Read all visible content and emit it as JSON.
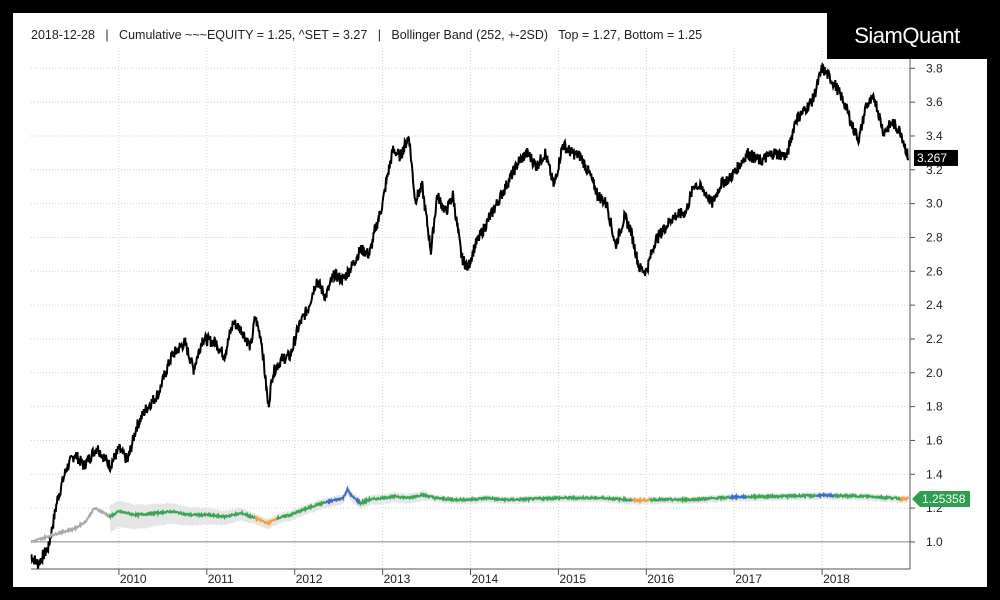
{
  "header": {
    "date": "2018-12-28",
    "sep": "|",
    "series_label": "Cumulative ~~~EQUITY = 1.25, ^SET = 3.27",
    "indicator_label": "Bollinger Band (252, +-2SD)",
    "band_label": "Top = 1.27, Bottom = 1.25"
  },
  "logo": {
    "text": "SiamQuant"
  },
  "colors": {
    "background": "#ffffff",
    "frame": "#000000",
    "set_line": "#000000",
    "equity_green": "#3aa655",
    "equity_orange": "#f5a040",
    "equity_blue": "#3a6fc4",
    "equity_gray": "#aaaaaa",
    "band_fill": "#e6e6e6",
    "last_value_black": "#000000",
    "last_value_green": "#2e9e4f"
  },
  "chart_data": {
    "type": "line",
    "title": "",
    "xlabel": "",
    "ylabel": "",
    "ylim": [
      0.84,
      3.92
    ],
    "xlim": [
      2009.0,
      2019.0
    ],
    "x_ticks": [
      "2010",
      "2011",
      "2012",
      "2013",
      "2014",
      "2015",
      "2016",
      "2017",
      "2018"
    ],
    "y_ticks": [
      "1.0",
      "1.2",
      "1.4",
      "1.6",
      "1.8",
      "2.0",
      "2.2",
      "2.4",
      "2.6",
      "2.8",
      "3.0",
      "3.2",
      "3.4",
      "3.6",
      "3.8"
    ],
    "grid": true,
    "last_values": {
      "set": "3.267",
      "equity": "1.25358"
    },
    "series": [
      {
        "name": "^SET",
        "points": [
          [
            2009.0,
            0.92
          ],
          [
            2009.08,
            0.87
          ],
          [
            2009.2,
            0.97
          ],
          [
            2009.3,
            1.25
          ],
          [
            2009.4,
            1.43
          ],
          [
            2009.5,
            1.52
          ],
          [
            2009.6,
            1.45
          ],
          [
            2009.75,
            1.56
          ],
          [
            2009.9,
            1.45
          ],
          [
            2010.0,
            1.55
          ],
          [
            2010.1,
            1.48
          ],
          [
            2010.2,
            1.68
          ],
          [
            2010.3,
            1.78
          ],
          [
            2010.45,
            1.88
          ],
          [
            2010.6,
            2.1
          ],
          [
            2010.75,
            2.18
          ],
          [
            2010.85,
            2.02
          ],
          [
            2010.95,
            2.2
          ],
          [
            2011.1,
            2.18
          ],
          [
            2011.2,
            2.1
          ],
          [
            2011.3,
            2.3
          ],
          [
            2011.4,
            2.25
          ],
          [
            2011.5,
            2.15
          ],
          [
            2011.55,
            2.33
          ],
          [
            2011.62,
            2.2
          ],
          [
            2011.7,
            1.8
          ],
          [
            2011.75,
            2.0
          ],
          [
            2011.85,
            2.08
          ],
          [
            2011.95,
            2.1
          ],
          [
            2012.05,
            2.28
          ],
          [
            2012.15,
            2.38
          ],
          [
            2012.25,
            2.55
          ],
          [
            2012.35,
            2.45
          ],
          [
            2012.45,
            2.58
          ],
          [
            2012.55,
            2.55
          ],
          [
            2012.65,
            2.63
          ],
          [
            2012.75,
            2.73
          ],
          [
            2012.85,
            2.7
          ],
          [
            2012.92,
            2.85
          ],
          [
            2013.0,
            3.0
          ],
          [
            2013.05,
            3.15
          ],
          [
            2013.12,
            3.32
          ],
          [
            2013.2,
            3.28
          ],
          [
            2013.3,
            3.4
          ],
          [
            2013.37,
            3.02
          ],
          [
            2013.45,
            3.1
          ],
          [
            2013.55,
            2.72
          ],
          [
            2013.62,
            3.05
          ],
          [
            2013.72,
            2.95
          ],
          [
            2013.8,
            3.05
          ],
          [
            2013.9,
            2.68
          ],
          [
            2013.97,
            2.62
          ],
          [
            2014.05,
            2.75
          ],
          [
            2014.15,
            2.85
          ],
          [
            2014.25,
            2.95
          ],
          [
            2014.4,
            3.1
          ],
          [
            2014.55,
            3.25
          ],
          [
            2014.65,
            3.3
          ],
          [
            2014.75,
            3.22
          ],
          [
            2014.85,
            3.3
          ],
          [
            2014.95,
            3.1
          ],
          [
            2015.05,
            3.35
          ],
          [
            2015.15,
            3.3
          ],
          [
            2015.25,
            3.28
          ],
          [
            2015.35,
            3.18
          ],
          [
            2015.45,
            3.05
          ],
          [
            2015.55,
            3.0
          ],
          [
            2015.65,
            2.75
          ],
          [
            2015.75,
            2.92
          ],
          [
            2015.82,
            2.85
          ],
          [
            2015.92,
            2.62
          ],
          [
            2016.0,
            2.6
          ],
          [
            2016.1,
            2.78
          ],
          [
            2016.2,
            2.85
          ],
          [
            2016.3,
            2.92
          ],
          [
            2016.45,
            2.95
          ],
          [
            2016.55,
            3.12
          ],
          [
            2016.65,
            3.08
          ],
          [
            2016.75,
            3.0
          ],
          [
            2016.85,
            3.12
          ],
          [
            2016.95,
            3.15
          ],
          [
            2017.05,
            3.22
          ],
          [
            2017.15,
            3.3
          ],
          [
            2017.3,
            3.25
          ],
          [
            2017.45,
            3.3
          ],
          [
            2017.6,
            3.28
          ],
          [
            2017.7,
            3.5
          ],
          [
            2017.8,
            3.55
          ],
          [
            2017.9,
            3.62
          ],
          [
            2018.0,
            3.8
          ],
          [
            2018.08,
            3.75
          ],
          [
            2018.15,
            3.7
          ],
          [
            2018.25,
            3.6
          ],
          [
            2018.35,
            3.45
          ],
          [
            2018.42,
            3.38
          ],
          [
            2018.5,
            3.58
          ],
          [
            2018.6,
            3.62
          ],
          [
            2018.7,
            3.42
          ],
          [
            2018.8,
            3.48
          ],
          [
            2018.9,
            3.42
          ],
          [
            2018.98,
            3.27
          ]
        ]
      },
      {
        "name": "EQUITY",
        "points": [
          [
            2009.0,
            1.0
          ],
          [
            2009.3,
            1.05
          ],
          [
            2009.5,
            1.08
          ],
          [
            2009.62,
            1.12
          ],
          [
            2009.72,
            1.2
          ],
          [
            2009.8,
            1.18
          ],
          [
            2009.9,
            1.15
          ],
          [
            2010.0,
            1.18
          ],
          [
            2010.2,
            1.16
          ],
          [
            2010.4,
            1.17
          ],
          [
            2010.6,
            1.18
          ],
          [
            2010.8,
            1.16
          ],
          [
            2011.0,
            1.16
          ],
          [
            2011.2,
            1.15
          ],
          [
            2011.4,
            1.17
          ],
          [
            2011.5,
            1.15
          ],
          [
            2011.6,
            1.13
          ],
          [
            2011.7,
            1.11
          ],
          [
            2011.8,
            1.14
          ],
          [
            2011.95,
            1.16
          ],
          [
            2012.1,
            1.19
          ],
          [
            2012.25,
            1.22
          ],
          [
            2012.4,
            1.24
          ],
          [
            2012.55,
            1.26
          ],
          [
            2012.6,
            1.31
          ],
          [
            2012.65,
            1.27
          ],
          [
            2012.75,
            1.23
          ],
          [
            2012.85,
            1.25
          ],
          [
            2013.0,
            1.26
          ],
          [
            2013.15,
            1.27
          ],
          [
            2013.3,
            1.26
          ],
          [
            2013.45,
            1.28
          ],
          [
            2013.6,
            1.26
          ],
          [
            2013.8,
            1.25
          ],
          [
            2014.0,
            1.25
          ],
          [
            2014.2,
            1.26
          ],
          [
            2014.35,
            1.25
          ],
          [
            2014.5,
            1.25
          ],
          [
            2015.0,
            1.26
          ],
          [
            2015.5,
            1.26
          ],
          [
            2015.9,
            1.245
          ],
          [
            2016.1,
            1.25
          ],
          [
            2016.5,
            1.25
          ],
          [
            2017.0,
            1.265
          ],
          [
            2017.5,
            1.27
          ],
          [
            2018.0,
            1.275
          ],
          [
            2018.5,
            1.27
          ],
          [
            2018.98,
            1.254
          ]
        ]
      }
    ]
  }
}
